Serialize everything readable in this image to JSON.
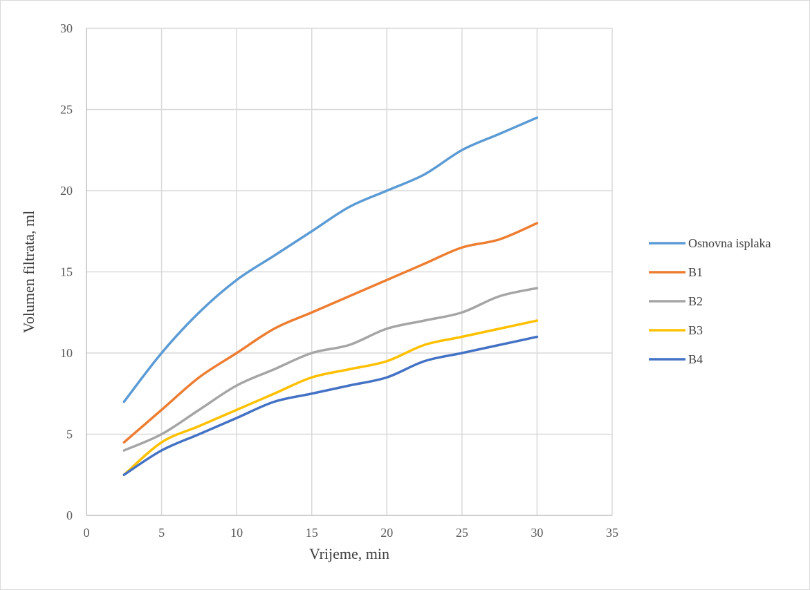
{
  "chart_data": {
    "type": "line",
    "title": "",
    "xlabel": "Vrijeme, min",
    "ylabel": "Volumen filtrata, ml",
    "xlim": [
      0,
      35
    ],
    "ylim": [
      0,
      30
    ],
    "xticks": [
      0,
      5,
      10,
      15,
      20,
      25,
      30,
      35
    ],
    "yticks": [
      0,
      5,
      10,
      15,
      20,
      25,
      30
    ],
    "grid": true,
    "legend_position": "right",
    "x": [
      2.5,
      5,
      7.5,
      10,
      12.5,
      15,
      17.5,
      20,
      22.5,
      25,
      27.5,
      30
    ],
    "series": [
      {
        "name": "Osnovna isplaka",
        "color": "#5B9BD5",
        "values": [
          7,
          10,
          12.5,
          14.5,
          16,
          17.5,
          19,
          20,
          21,
          22.5,
          23.5,
          24.5
        ]
      },
      {
        "name": "B1",
        "color": "#ED7D31",
        "values": [
          4.5,
          6.5,
          8.5,
          10,
          11.5,
          12.5,
          13.5,
          14.5,
          15.5,
          16.5,
          17,
          18
        ]
      },
      {
        "name": "B2",
        "color": "#A5A5A5",
        "values": [
          4,
          5,
          6.5,
          8,
          9,
          10,
          10.5,
          11.5,
          12,
          12.5,
          13.5,
          14
        ]
      },
      {
        "name": "B3",
        "color": "#FFC000",
        "values": [
          2.5,
          4.5,
          5.5,
          6.5,
          7.5,
          8.5,
          9,
          9.5,
          10.5,
          11,
          11.5,
          12
        ]
      },
      {
        "name": "B4",
        "color": "#4472C4",
        "values": [
          2.5,
          4,
          5,
          6,
          7,
          7.5,
          8,
          8.5,
          9.5,
          10,
          10.5,
          11
        ]
      }
    ]
  }
}
